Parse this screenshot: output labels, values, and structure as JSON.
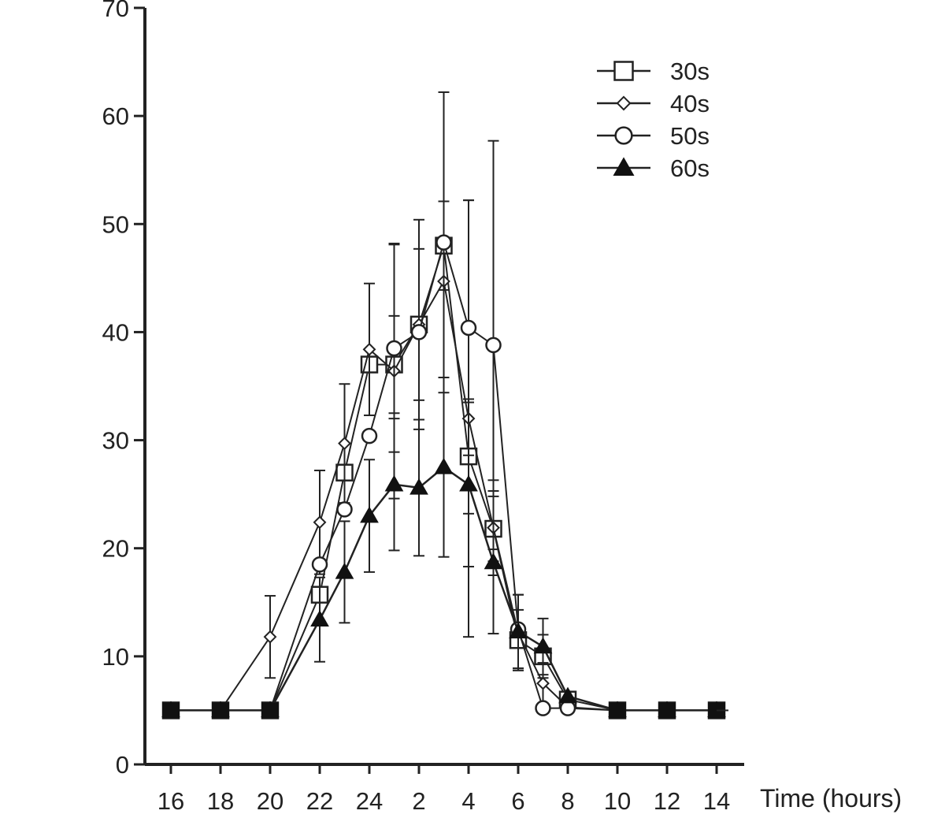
{
  "chart_data": {
    "type": "line",
    "title": "",
    "xlabel": "Time (hours)",
    "ylabel": "",
    "x_tick_labels": [
      "16",
      "18",
      "20",
      "22",
      "24",
      "2",
      "4",
      "6",
      "8",
      "10",
      "12",
      "14"
    ],
    "ylim": [
      0,
      70
    ],
    "y_ticks": [
      0,
      10,
      20,
      30,
      40,
      50,
      60,
      70
    ],
    "grid": false,
    "legend_position": "top-right",
    "series": [
      {
        "name": "30s",
        "marker": "open-square",
        "x": [
          16,
          18,
          20,
          22,
          23,
          24,
          25,
          26,
          27,
          28,
          29,
          30,
          31,
          32,
          34,
          36,
          38
        ],
        "y": [
          5,
          5,
          5,
          15.7,
          27,
          37,
          37,
          40.7,
          48,
          28.5,
          21.8,
          11.5,
          10,
          6,
          5,
          5,
          5
        ],
        "err": [
          0,
          0,
          0,
          0,
          0,
          0,
          4.5,
          7,
          4.1,
          5.3,
          3,
          2.8,
          2,
          0,
          0,
          0,
          0
        ]
      },
      {
        "name": "40s",
        "marker": "open-diamond",
        "x": [
          16,
          18,
          20,
          22,
          23,
          24,
          25,
          26,
          27,
          28,
          29,
          30,
          31,
          32,
          34,
          36,
          38
        ],
        "y": [
          5,
          5,
          11.8,
          22.4,
          29.7,
          38.4,
          36.4,
          40.7,
          44.7,
          32,
          21.9,
          12.2,
          7.5,
          5.3,
          5,
          5,
          5
        ],
        "err": [
          0,
          0,
          3.8,
          4.8,
          5.5,
          6.1,
          11.8,
          9.7,
          0,
          20.2,
          4.4,
          3.5,
          1.9,
          0,
          0,
          0,
          0
        ]
      },
      {
        "name": "50s",
        "marker": "open-circle",
        "x": [
          16,
          18,
          20,
          22,
          23,
          24,
          25,
          26,
          27,
          28,
          29,
          30,
          31,
          32,
          34,
          36,
          38
        ],
        "y": [
          5,
          5,
          5,
          18.5,
          23.6,
          30.4,
          38.5,
          40,
          48.3,
          40.4,
          38.8,
          12.5,
          5.2,
          5.2,
          5,
          5,
          5
        ],
        "err": [
          0,
          0,
          0,
          0,
          0,
          0,
          9.6,
          0,
          13.9,
          11.8,
          18.9,
          0,
          0,
          0,
          0,
          0,
          0
        ]
      },
      {
        "name": "60s",
        "marker": "filled-triangle",
        "x": [
          16,
          18,
          20,
          22,
          23,
          24,
          25,
          26,
          27,
          28,
          29,
          30,
          31,
          32,
          34,
          36,
          38
        ],
        "y": [
          5,
          5,
          5,
          13.4,
          17.8,
          23,
          25.9,
          25.6,
          27.5,
          25.9,
          18.7,
          12.3,
          10.9,
          6.3,
          5,
          5,
          5
        ],
        "err": [
          0,
          0,
          0,
          3.9,
          4.7,
          5.2,
          6.1,
          6.3,
          8.3,
          7.6,
          6.6,
          3.4,
          2.6,
          0,
          0,
          0,
          0
        ]
      }
    ]
  }
}
